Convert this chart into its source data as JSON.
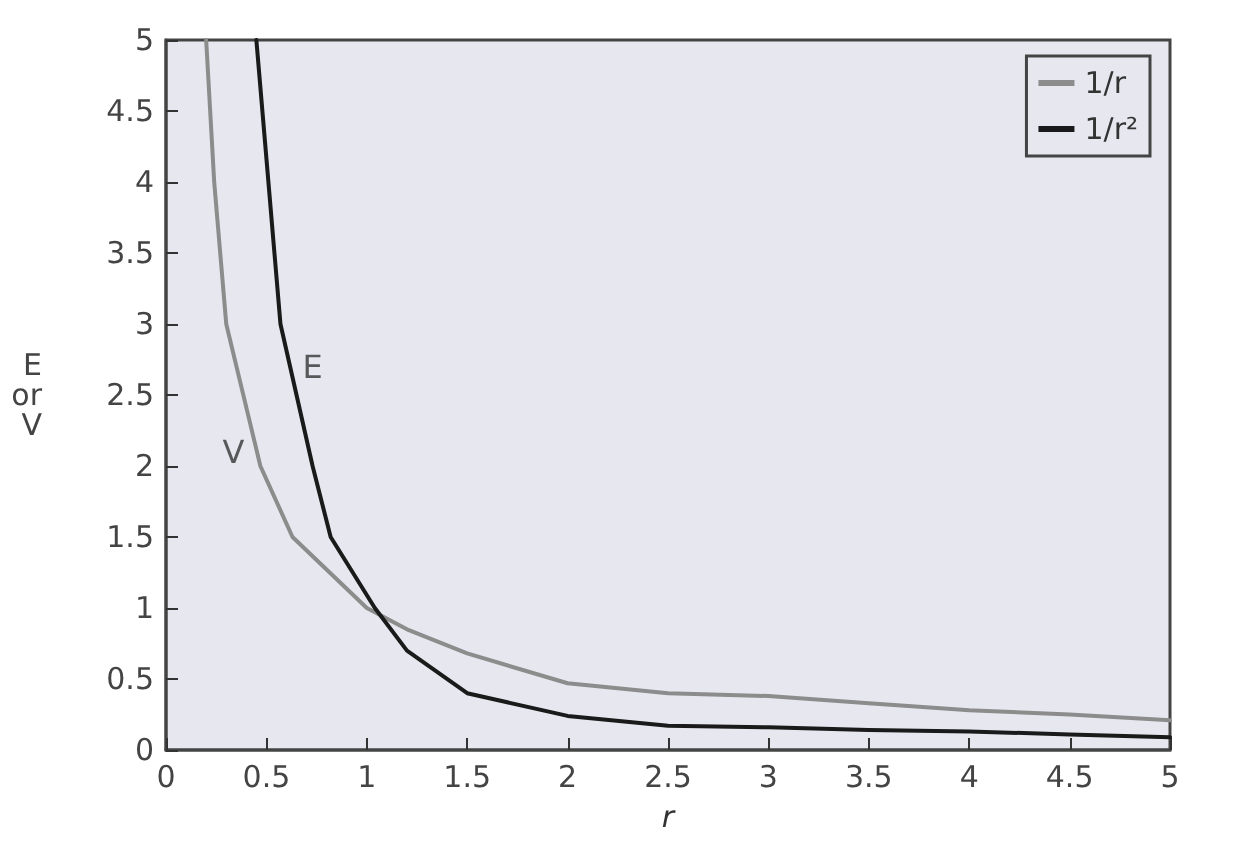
{
  "chart_data": {
    "type": "line",
    "xlabel": "r",
    "ylabel": "E\nor\nV",
    "series": [
      {
        "name": "1/r",
        "color": "#8c8c8c",
        "x": [
          0.2,
          0.24,
          0.3,
          0.47,
          0.63,
          1.0,
          1.2,
          1.5,
          2,
          2.5,
          3,
          3.5,
          4,
          4.5,
          5
        ],
        "values": [
          5,
          4,
          3,
          2,
          1.5,
          1.0,
          0.85,
          0.68,
          0.47,
          0.4,
          0.38,
          0.33,
          0.28,
          0.25,
          0.21
        ]
      },
      {
        "name": "1/r²",
        "color": "#1a1a1a",
        "x": [
          0.45,
          0.51,
          0.57,
          0.73,
          0.82,
          1.04,
          1.2,
          1.5,
          2,
          2.5,
          3,
          3.5,
          4,
          4.5,
          5
        ],
        "values": [
          5,
          4,
          3,
          2,
          1.5,
          1.0,
          0.7,
          0.4,
          0.24,
          0.17,
          0.16,
          0.14,
          0.13,
          0.11,
          0.09
        ]
      }
    ],
    "annotations": [
      {
        "text": "E",
        "x": 0.62,
        "y": 2.7
      },
      {
        "text": "V",
        "x": 0.45,
        "y": 2.1
      }
    ],
    "xlim": [
      0,
      5
    ],
    "xticks": [
      0,
      0.5,
      1,
      1.5,
      2,
      2.5,
      3,
      3.5,
      4,
      4.5,
      5
    ],
    "ylim": [
      0,
      5
    ],
    "yticks": [
      0,
      0.5,
      1,
      1.5,
      2,
      2.5,
      3,
      3.5,
      4,
      4.5,
      5
    ],
    "grid": false,
    "legend": "top right",
    "marker": "none",
    "line_style": "solid"
  }
}
